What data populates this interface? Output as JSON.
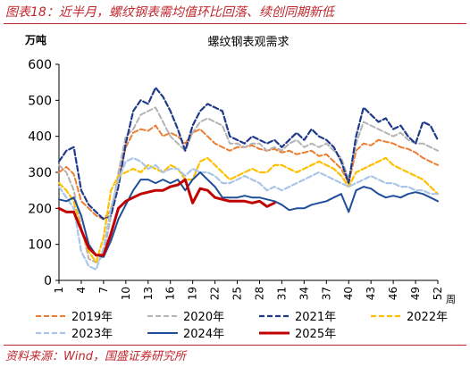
{
  "figure": {
    "title": "图表18：近半月，螺纹钢表需均值环比回落、续创同期新低",
    "source": "资料来源：Wind，国盛证券研究所"
  },
  "chart_data": {
    "type": "line",
    "title": "螺纹钢表观需求",
    "ylabel": "万吨",
    "xlabel": "周",
    "ylim": [
      0,
      600
    ],
    "yticks": [
      0,
      100,
      200,
      300,
      400,
      500,
      600
    ],
    "xlim": [
      1,
      52
    ],
    "xticks": [
      1,
      4,
      7,
      10,
      13,
      16,
      19,
      22,
      25,
      28,
      31,
      34,
      37,
      40,
      43,
      46,
      49,
      52
    ],
    "grid": false,
    "legend_position": "bottom",
    "series": [
      {
        "name": "2019年",
        "color": "#ed7d31",
        "dash": "6,3",
        "width": 2,
        "values": [
          300,
          315,
          295,
          220,
          200,
          180,
          170,
          195,
          280,
          370,
          410,
          420,
          415,
          430,
          400,
          410,
          400,
          380,
          410,
          420,
          400,
          380,
          370,
          360,
          370,
          370,
          375,
          365,
          360,
          365,
          355,
          360,
          350,
          355,
          360,
          345,
          350,
          330,
          310,
          270,
          360,
          380,
          375,
          390,
          385,
          380,
          370,
          365,
          355,
          340,
          330,
          320
        ]
      },
      {
        "name": "2020年",
        "color": "#b3b3b3",
        "dash": "6,3",
        "width": 2,
        "values": [
          320,
          300,
          250,
          150,
          60,
          50,
          70,
          180,
          300,
          400,
          420,
          460,
          470,
          480,
          440,
          400,
          380,
          360,
          410,
          440,
          450,
          440,
          430,
          380,
          380,
          370,
          380,
          380,
          360,
          370,
          360,
          380,
          390,
          370,
          380,
          370,
          380,
          360,
          340,
          280,
          380,
          440,
          430,
          420,
          410,
          400,
          410,
          390,
          380,
          380,
          370,
          360
        ]
      },
      {
        "name": "2021年",
        "color": "#1f3a8a",
        "dash": "6,3",
        "width": 2.2,
        "values": [
          330,
          360,
          370,
          250,
          210,
          190,
          170,
          180,
          260,
          380,
          470,
          500,
          490,
          535,
          510,
          470,
          420,
          360,
          430,
          470,
          490,
          480,
          470,
          400,
          390,
          380,
          400,
          390,
          380,
          390,
          370,
          390,
          410,
          390,
          420,
          400,
          390,
          370,
          330,
          270,
          400,
          480,
          460,
          440,
          450,
          420,
          430,
          400,
          380,
          440,
          430,
          390
        ]
      },
      {
        "name": "2022年",
        "color": "#ffc000",
        "dash": "6,3",
        "width": 2.2,
        "values": [
          270,
          250,
          220,
          140,
          80,
          50,
          120,
          250,
          290,
          300,
          310,
          300,
          320,
          310,
          300,
          320,
          310,
          280,
          280,
          330,
          340,
          320,
          300,
          280,
          290,
          300,
          310,
          300,
          300,
          320,
          320,
          310,
          300,
          310,
          320,
          330,
          320,
          310,
          290,
          260,
          300,
          310,
          320,
          330,
          340,
          320,
          310,
          300,
          290,
          280,
          260,
          240
        ]
      },
      {
        "name": "2023年",
        "color": "#a9c5e8",
        "dash": "6,3",
        "width": 2.2,
        "values": [
          260,
          230,
          200,
          80,
          40,
          30,
          90,
          200,
          280,
          330,
          340,
          330,
          310,
          320,
          300,
          310,
          310,
          290,
          310,
          300,
          300,
          290,
          270,
          270,
          280,
          290,
          280,
          270,
          250,
          260,
          250,
          260,
          270,
          280,
          290,
          300,
          290,
          280,
          270,
          260,
          270,
          280,
          290,
          280,
          270,
          270,
          260,
          260,
          250,
          250,
          240,
          240
        ]
      },
      {
        "name": "2024年",
        "color": "#1f4e9b",
        "dash": "",
        "width": 2,
        "values": [
          225,
          220,
          230,
          180,
          100,
          70,
          65,
          110,
          170,
          210,
          250,
          280,
          280,
          270,
          280,
          270,
          280,
          250,
          280,
          300,
          280,
          260,
          230,
          230,
          230,
          235,
          230,
          230,
          225,
          220,
          210,
          195,
          200,
          200,
          210,
          215,
          220,
          230,
          240,
          190,
          250,
          260,
          255,
          240,
          230,
          235,
          230,
          240,
          245,
          240,
          230,
          220
        ]
      },
      {
        "name": "2025年",
        "color": "#c00000",
        "dash": "",
        "width": 3,
        "values": [
          200,
          190,
          190,
          140,
          90,
          70,
          70,
          130,
          200,
          220,
          230,
          240,
          245,
          250,
          250,
          260,
          265,
          280,
          215,
          255,
          250,
          230,
          225,
          220,
          220,
          220,
          215,
          220,
          205,
          215
        ]
      }
    ]
  }
}
